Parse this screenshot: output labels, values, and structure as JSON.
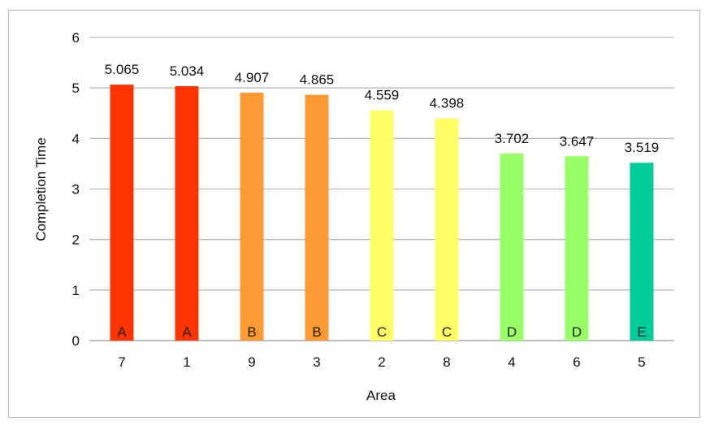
{
  "chart_data": {
    "type": "bar",
    "title": "",
    "xlabel": "Area",
    "ylabel": "Completion Time",
    "ylim": [
      0,
      6
    ],
    "yticks": [
      0,
      1,
      2,
      3,
      4,
      5,
      6
    ],
    "grid": true,
    "legend": "none",
    "categories": [
      "7",
      "1",
      "9",
      "3",
      "2",
      "8",
      "4",
      "6",
      "5"
    ],
    "values": [
      5.065,
      5.034,
      4.907,
      4.865,
      4.559,
      4.398,
      3.702,
      3.647,
      3.519
    ],
    "value_labels": [
      "5.065",
      "5.034",
      "4.907",
      "4.865",
      "4.559",
      "4.398",
      "3.702",
      "3.647",
      "3.519"
    ],
    "grades": [
      "A",
      "A",
      "B",
      "B",
      "C",
      "C",
      "D",
      "D",
      "E"
    ],
    "grade_colors": {
      "A": "#ff3300",
      "B": "#ff9933",
      "C": "#ffff66",
      "D": "#99ff66",
      "E": "#00cc99"
    }
  }
}
